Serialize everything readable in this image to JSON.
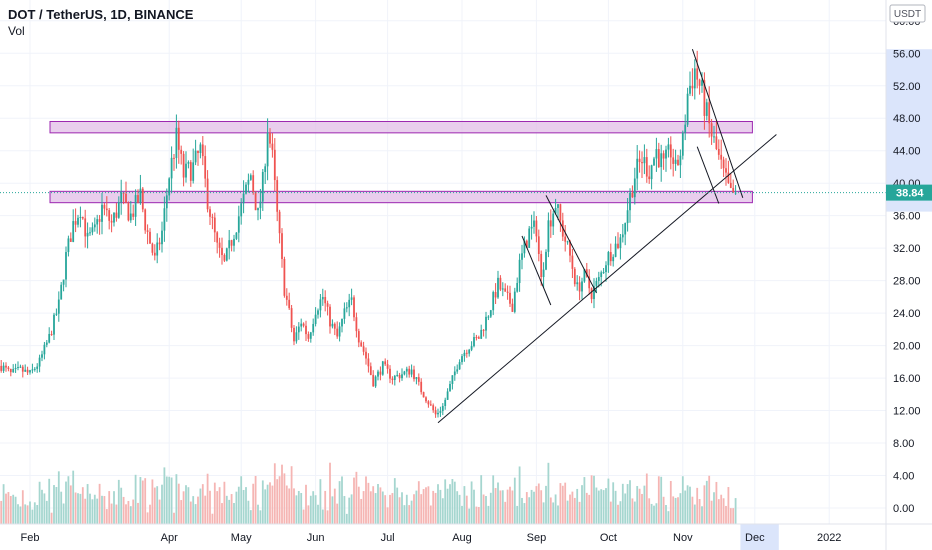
{
  "header": {
    "symbol_line": "DOT / TetherUS, 1D, BINANCE",
    "volume_label": "Vol"
  },
  "currency_label": "USDT",
  "colors": {
    "up": "#26a69a",
    "down": "#ef5350",
    "band_fill": "#e1bee7",
    "band_stroke": "#9c27b0",
    "price_tag": "#26a69a",
    "axis_highlight": "#dbe5fb",
    "volume_up": "#a5d6cf",
    "volume_down": "#f5b5b3"
  },
  "chart_data": {
    "type": "candlestick",
    "title": "DOT / TetherUS, 1D, BINANCE",
    "last_price": 38.84,
    "y_axis": {
      "range": [
        -1.5,
        61.5
      ],
      "ticks": [
        "60.00",
        "56.00",
        "52.00",
        "48.00",
        "44.00",
        "40.00",
        "36.00",
        "32.00",
        "28.00",
        "24.00",
        "20.00",
        "16.00",
        "12.00",
        "8.00",
        "4.00",
        "0.00"
      ]
    },
    "x_axis": {
      "labels": [
        {
          "label": "Feb",
          "day": 0
        },
        {
          "label": "Apr",
          "day": 58
        },
        {
          "label": "May",
          "day": 88
        },
        {
          "label": "Jun",
          "day": 119
        },
        {
          "label": "Jul",
          "day": 149
        },
        {
          "label": "Aug",
          "day": 180
        },
        {
          "label": "Sep",
          "day": 211
        },
        {
          "label": "Oct",
          "day": 241
        },
        {
          "label": "Nov",
          "day": 272
        },
        {
          "label": "Dec",
          "day": 302
        },
        {
          "label": "2022",
          "day": 333
        }
      ],
      "highlight_days": [
        296,
        312
      ]
    },
    "price_path": [
      {
        "day": -12,
        "price": 17.5
      },
      {
        "day": -8,
        "price": 16.5
      },
      {
        "day": -4,
        "price": 17.0
      },
      {
        "day": 0,
        "price": 16.5
      },
      {
        "day": 4,
        "price": 18.0
      },
      {
        "day": 8,
        "price": 21.0
      },
      {
        "day": 12,
        "price": 25.0
      },
      {
        "day": 15,
        "price": 31.0
      },
      {
        "day": 18,
        "price": 35.0
      },
      {
        "day": 21,
        "price": 37.0
      },
      {
        "day": 24,
        "price": 33.0
      },
      {
        "day": 27,
        "price": 34.0
      },
      {
        "day": 30,
        "price": 37.0
      },
      {
        "day": 34,
        "price": 35.0
      },
      {
        "day": 38,
        "price": 38.0
      },
      {
        "day": 42,
        "price": 36.0
      },
      {
        "day": 46,
        "price": 38.5
      },
      {
        "day": 48,
        "price": 35.0
      },
      {
        "day": 52,
        "price": 30.5
      },
      {
        "day": 55,
        "price": 34.0
      },
      {
        "day": 58,
        "price": 41.0
      },
      {
        "day": 61,
        "price": 45.5
      },
      {
        "day": 64,
        "price": 41.0
      },
      {
        "day": 68,
        "price": 42.0
      },
      {
        "day": 71,
        "price": 44.0
      },
      {
        "day": 74,
        "price": 38.0
      },
      {
        "day": 78,
        "price": 32.0
      },
      {
        "day": 81,
        "price": 30.0
      },
      {
        "day": 85,
        "price": 34.0
      },
      {
        "day": 88,
        "price": 37.0
      },
      {
        "day": 92,
        "price": 41.0
      },
      {
        "day": 95,
        "price": 36.0
      },
      {
        "day": 97,
        "price": 40.0
      },
      {
        "day": 99,
        "price": 47.0
      },
      {
        "day": 101,
        "price": 43.0
      },
      {
        "day": 103,
        "price": 36.0
      },
      {
        "day": 106,
        "price": 27.0
      },
      {
        "day": 108,
        "price": 24.0
      },
      {
        "day": 110,
        "price": 20.5
      },
      {
        "day": 113,
        "price": 23.0
      },
      {
        "day": 116,
        "price": 21.0
      },
      {
        "day": 119,
        "price": 24.5
      },
      {
        "day": 122,
        "price": 26.0
      },
      {
        "day": 125,
        "price": 23.0
      },
      {
        "day": 128,
        "price": 21.0
      },
      {
        "day": 131,
        "price": 24.0
      },
      {
        "day": 134,
        "price": 25.5
      },
      {
        "day": 137,
        "price": 21.0
      },
      {
        "day": 140,
        "price": 18.5
      },
      {
        "day": 143,
        "price": 15.5
      },
      {
        "day": 147,
        "price": 17.5
      },
      {
        "day": 151,
        "price": 16.0
      },
      {
        "day": 155,
        "price": 16.5
      },
      {
        "day": 159,
        "price": 17.0
      },
      {
        "day": 163,
        "price": 14.5
      },
      {
        "day": 166,
        "price": 13.0
      },
      {
        "day": 169,
        "price": 11.5
      },
      {
        "day": 172,
        "price": 12.5
      },
      {
        "day": 175,
        "price": 15.0
      },
      {
        "day": 179,
        "price": 18.5
      },
      {
        "day": 183,
        "price": 20.0
      },
      {
        "day": 187,
        "price": 21.0
      },
      {
        "day": 191,
        "price": 24.0
      },
      {
        "day": 195,
        "price": 27.5
      },
      {
        "day": 198,
        "price": 26.0
      },
      {
        "day": 201,
        "price": 25.0
      },
      {
        "day": 204,
        "price": 30.0
      },
      {
        "day": 208,
        "price": 34.0
      },
      {
        "day": 211,
        "price": 34.5
      },
      {
        "day": 213,
        "price": 28.0
      },
      {
        "day": 216,
        "price": 35.0
      },
      {
        "day": 219,
        "price": 37.5
      },
      {
        "day": 222,
        "price": 34.0
      },
      {
        "day": 225,
        "price": 31.0
      },
      {
        "day": 228,
        "price": 27.0
      },
      {
        "day": 231,
        "price": 28.5
      },
      {
        "day": 234,
        "price": 26.5
      },
      {
        "day": 237,
        "price": 28.0
      },
      {
        "day": 240,
        "price": 30.5
      },
      {
        "day": 243,
        "price": 32.0
      },
      {
        "day": 246,
        "price": 33.0
      },
      {
        "day": 249,
        "price": 37.0
      },
      {
        "day": 252,
        "price": 41.0
      },
      {
        "day": 255,
        "price": 43.0
      },
      {
        "day": 258,
        "price": 41.5
      },
      {
        "day": 261,
        "price": 44.0
      },
      {
        "day": 264,
        "price": 42.0
      },
      {
        "day": 267,
        "price": 44.0
      },
      {
        "day": 269,
        "price": 41.5
      },
      {
        "day": 272,
        "price": 45.0
      },
      {
        "day": 274,
        "price": 51.0
      },
      {
        "day": 277,
        "price": 54.0
      },
      {
        "day": 280,
        "price": 51.0
      },
      {
        "day": 283,
        "price": 47.0
      },
      {
        "day": 286,
        "price": 44.0
      },
      {
        "day": 289,
        "price": 41.0
      },
      {
        "day": 292,
        "price": 38.5
      },
      {
        "day": 294,
        "price": 38.84
      }
    ],
    "horizontal_bands": [
      {
        "low": 46.2,
        "high": 47.6,
        "day_start": -12,
        "day_end": 301
      },
      {
        "low": 37.6,
        "high": 39.0,
        "day_start": -12,
        "day_end": 301
      }
    ],
    "trend_lines": [
      {
        "from": {
          "day": 170,
          "price": 10.5
        },
        "to": {
          "day": 311,
          "price": 46.0
        }
      },
      {
        "from": {
          "day": 215,
          "price": 38.5
        },
        "to": {
          "day": 236,
          "price": 26.5
        }
      },
      {
        "from": {
          "day": 205,
          "price": 33.5
        },
        "to": {
          "day": 217,
          "price": 25.0
        }
      },
      {
        "from": {
          "day": 276,
          "price": 56.5
        },
        "to": {
          "day": 297,
          "price": 38.2
        }
      },
      {
        "from": {
          "day": 278,
          "price": 44.5
        },
        "to": {
          "day": 287,
          "price": 37.5
        }
      }
    ],
    "volume_axis": "shared with price axis",
    "last_price_tag": "38.84"
  }
}
